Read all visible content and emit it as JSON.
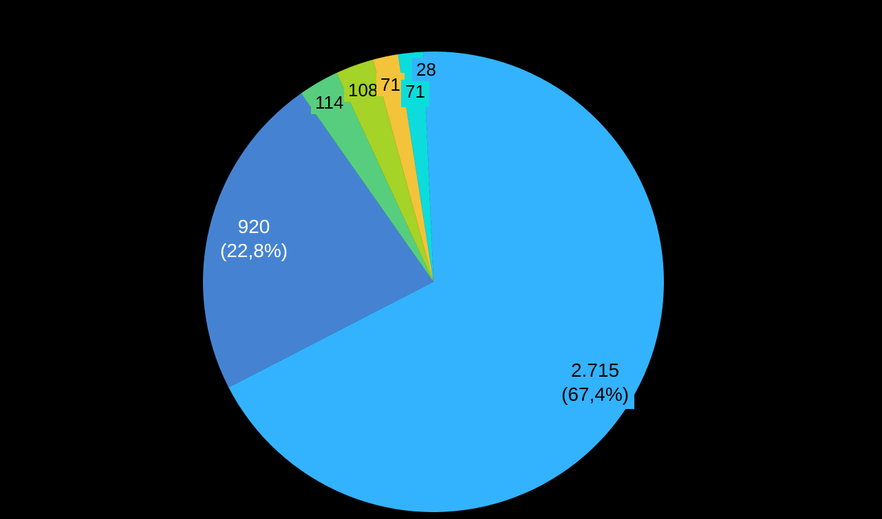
{
  "background_color": "#000000",
  "chart_data": {
    "type": "pie",
    "title": "",
    "legend": "none",
    "direction": "clockwise",
    "start_angle_deg": 0,
    "total": 4027,
    "slices": [
      {
        "name": "slice-1",
        "value": 2715,
        "label": "2.715",
        "pct_label": "(67,4%)",
        "color": "#33B3FD",
        "text_color": "#000000"
      },
      {
        "name": "slice-2",
        "value": 920,
        "label": "920",
        "pct_label": "(22,8%)",
        "color": "#4583D2",
        "text_color": "#FFFFFF"
      },
      {
        "name": "slice-3",
        "value": 114,
        "label": "114",
        "color": "#57CE7D",
        "text_color": "#000000"
      },
      {
        "name": "slice-4",
        "value": 108,
        "label": "108",
        "color": "#A5D327",
        "text_color": "#000000"
      },
      {
        "name": "slice-5",
        "value": 71,
        "label": "71",
        "color": "#F3C33A",
        "text_color": "#000000"
      },
      {
        "name": "slice-6",
        "value": 71,
        "label": "71",
        "color": "#0CDCDC",
        "text_color": "#000000"
      },
      {
        "name": "slice-7",
        "value": 28,
        "label": "28",
        "color": "#33B3FD",
        "text_color": "#000000"
      }
    ]
  }
}
